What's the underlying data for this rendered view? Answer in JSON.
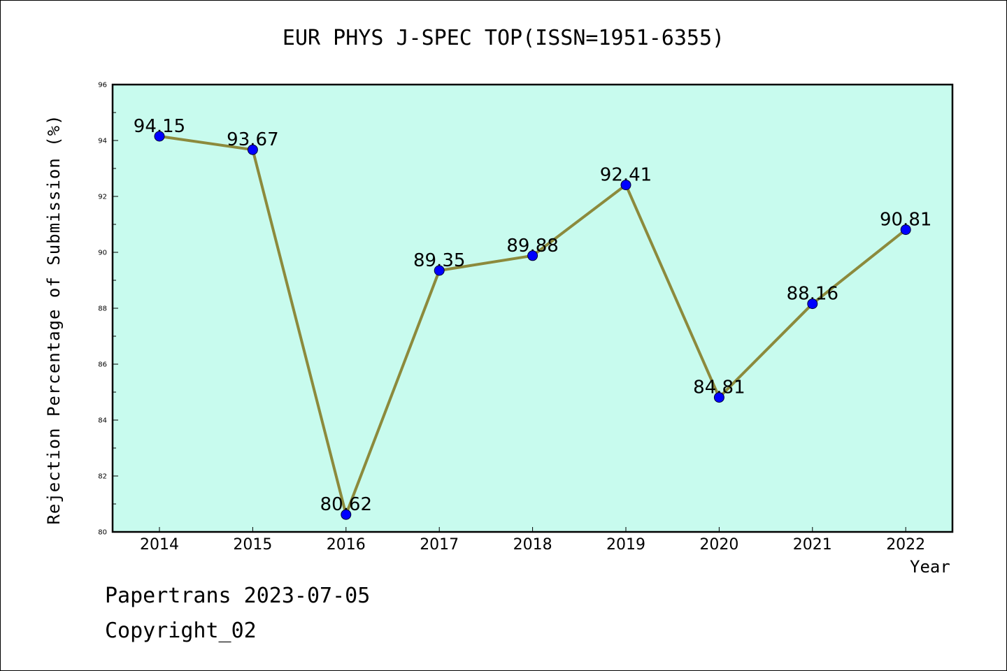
{
  "chart": {
    "title": "EUR PHYS J-SPEC TOP(ISSN=1951-6355)",
    "xlabel": "Year",
    "ylabel": "Rejection Percentage of Submission (%)"
  },
  "footer": {
    "date_line": "Papertrans 2023-07-05",
    "copyright": "Copyright_02"
  },
  "colors": {
    "plot_background": "#c8fbee",
    "line": "#8c8a3c",
    "marker": "#0000ff"
  },
  "chart_data": {
    "type": "line",
    "title": "EUR PHYS J-SPEC TOP(ISSN=1951-6355)",
    "xlabel": "Year",
    "ylabel": "Rejection Percentage of Submission (%)",
    "categories": [
      "2014",
      "2015",
      "2016",
      "2017",
      "2018",
      "2019",
      "2020",
      "2021",
      "2022"
    ],
    "values": [
      94.15,
      93.67,
      80.62,
      89.35,
      89.88,
      92.41,
      84.81,
      88.16,
      90.81
    ],
    "data_labels": [
      "94.15",
      "93.67",
      "80.62",
      "89.35",
      "89.88",
      "92.41",
      "84.81",
      "88.16",
      "90.81"
    ],
    "ylim": [
      80,
      96
    ],
    "yticks": [
      80,
      82,
      84,
      86,
      88,
      90,
      92,
      94,
      96
    ],
    "ytick_labels": [
      "80",
      "82",
      "84",
      "86",
      "88",
      "90",
      "92",
      "94",
      "96"
    ],
    "grid": false,
    "legend": "none"
  }
}
